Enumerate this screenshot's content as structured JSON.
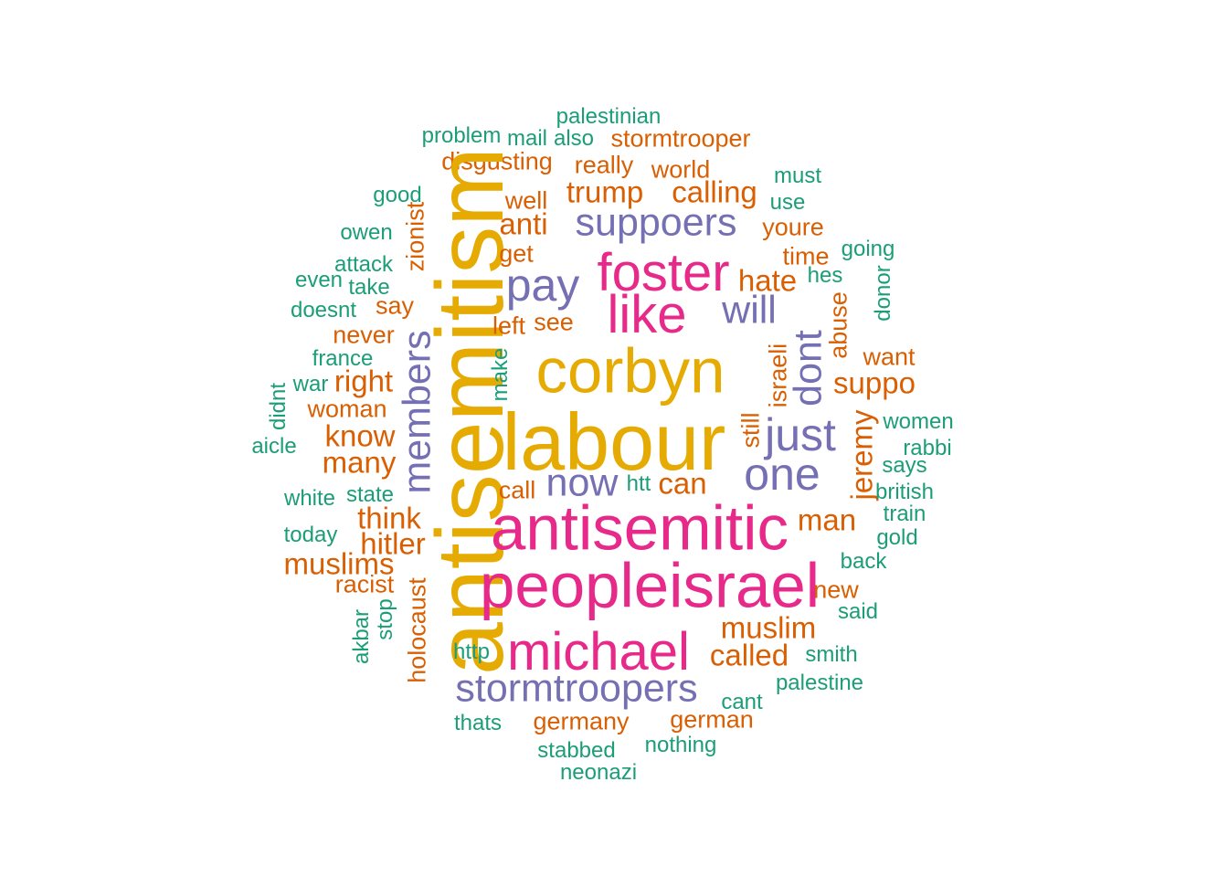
{
  "palette": {
    "green": "#1b9e77",
    "orange": "#d95f02",
    "purple": "#7570b3",
    "pink": "#e7298a",
    "gold": "#e6ab02"
  },
  "words": [
    {
      "text": "palestinian",
      "color": "green",
      "size": 1,
      "vertical": false
    },
    {
      "text": "problem",
      "color": "green",
      "size": 1,
      "vertical": false
    },
    {
      "text": "mail",
      "color": "green",
      "size": 1,
      "vertical": false
    },
    {
      "text": "also",
      "color": "green",
      "size": 1,
      "vertical": false
    },
    {
      "text": "stormtrooper",
      "color": "orange",
      "size": 2,
      "vertical": false
    },
    {
      "text": "disgusting",
      "color": "orange",
      "size": 2,
      "vertical": false
    },
    {
      "text": "really",
      "color": "orange",
      "size": 2,
      "vertical": false
    },
    {
      "text": "world",
      "color": "orange",
      "size": 2,
      "vertical": false
    },
    {
      "text": "must",
      "color": "green",
      "size": 1,
      "vertical": false
    },
    {
      "text": "good",
      "color": "green",
      "size": 1,
      "vertical": false
    },
    {
      "text": "well",
      "color": "orange",
      "size": 2,
      "vertical": false
    },
    {
      "text": "trump",
      "color": "orange",
      "size": 3,
      "vertical": false
    },
    {
      "text": "calling",
      "color": "orange",
      "size": 3,
      "vertical": false
    },
    {
      "text": "use",
      "color": "green",
      "size": 1,
      "vertical": false
    },
    {
      "text": "owen",
      "color": "green",
      "size": 1,
      "vertical": false
    },
    {
      "text": "zionist",
      "color": "orange",
      "size": 2,
      "vertical": true
    },
    {
      "text": "anti",
      "color": "orange",
      "size": 3,
      "vertical": false
    },
    {
      "text": "suppoers",
      "color": "purple",
      "size": 4,
      "vertical": false
    },
    {
      "text": "youre",
      "color": "orange",
      "size": 2,
      "vertical": false
    },
    {
      "text": "antisemitism",
      "color": "gold",
      "size": 9,
      "vertical": true
    },
    {
      "text": "get",
      "color": "orange",
      "size": 2,
      "vertical": false
    },
    {
      "text": "time",
      "color": "orange",
      "size": 2,
      "vertical": false
    },
    {
      "text": "going",
      "color": "green",
      "size": 1,
      "vertical": false
    },
    {
      "text": "attack",
      "color": "green",
      "size": 1,
      "vertical": false
    },
    {
      "text": "foster",
      "color": "pink",
      "size": 6,
      "vertical": false
    },
    {
      "text": "hes",
      "color": "green",
      "size": 1,
      "vertical": false
    },
    {
      "text": "even",
      "color": "green",
      "size": 1,
      "vertical": false
    },
    {
      "text": "take",
      "color": "green",
      "size": 1,
      "vertical": false
    },
    {
      "text": "pay",
      "color": "purple",
      "size": 5,
      "vertical": false
    },
    {
      "text": "hate",
      "color": "orange",
      "size": 3,
      "vertical": false
    },
    {
      "text": "donor",
      "color": "green",
      "size": 1,
      "vertical": true
    },
    {
      "text": "say",
      "color": "orange",
      "size": 2,
      "vertical": false
    },
    {
      "text": "doesnt",
      "color": "green",
      "size": 1,
      "vertical": false
    },
    {
      "text": "abuse",
      "color": "orange",
      "size": 2,
      "vertical": true
    },
    {
      "text": "like",
      "color": "pink",
      "size": 6,
      "vertical": false
    },
    {
      "text": "will",
      "color": "purple",
      "size": 4,
      "vertical": false
    },
    {
      "text": "never",
      "color": "orange",
      "size": 2,
      "vertical": false
    },
    {
      "text": "left",
      "color": "orange",
      "size": 2,
      "vertical": false
    },
    {
      "text": "see",
      "color": "orange",
      "size": 2,
      "vertical": false
    },
    {
      "text": "dont",
      "color": "purple",
      "size": 4,
      "vertical": true
    },
    {
      "text": "france",
      "color": "green",
      "size": 1,
      "vertical": false
    },
    {
      "text": "members",
      "color": "purple",
      "size": 4,
      "vertical": true
    },
    {
      "text": "want",
      "color": "orange",
      "size": 2,
      "vertical": false
    },
    {
      "text": "corbyn",
      "color": "gold",
      "size": 7,
      "vertical": false
    },
    {
      "text": "israeli",
      "color": "orange",
      "size": 2,
      "vertical": true
    },
    {
      "text": "make",
      "color": "green",
      "size": 1,
      "vertical": true
    },
    {
      "text": "war",
      "color": "green",
      "size": 1,
      "vertical": false
    },
    {
      "text": "right",
      "color": "orange",
      "size": 3,
      "vertical": false
    },
    {
      "text": "suppo",
      "color": "orange",
      "size": 3,
      "vertical": false
    },
    {
      "text": "didnt",
      "color": "green",
      "size": 1,
      "vertical": true
    },
    {
      "text": "woman",
      "color": "orange",
      "size": 2,
      "vertical": false
    },
    {
      "text": "women",
      "color": "green",
      "size": 1,
      "vertical": false
    },
    {
      "text": "jeremy",
      "color": "orange",
      "size": 3,
      "vertical": true
    },
    {
      "text": "still",
      "color": "orange",
      "size": 2,
      "vertical": true
    },
    {
      "text": "just",
      "color": "purple",
      "size": 5,
      "vertical": false
    },
    {
      "text": "know",
      "color": "orange",
      "size": 3,
      "vertical": false
    },
    {
      "text": "aicle",
      "color": "green",
      "size": 1,
      "vertical": false
    },
    {
      "text": "labour",
      "color": "gold",
      "size": 10,
      "vertical": false
    },
    {
      "text": "rabbi",
      "color": "green",
      "size": 1,
      "vertical": false
    },
    {
      "text": "many",
      "color": "orange",
      "size": 3,
      "vertical": false
    },
    {
      "text": "says",
      "color": "green",
      "size": 1,
      "vertical": false
    },
    {
      "text": "one",
      "color": "purple",
      "size": 5,
      "vertical": false
    },
    {
      "text": "now",
      "color": "purple",
      "size": 4,
      "vertical": false
    },
    {
      "text": "htt",
      "color": "green",
      "size": 1,
      "vertical": false
    },
    {
      "text": "can",
      "color": "orange",
      "size": 3,
      "vertical": false
    },
    {
      "text": "call",
      "color": "orange",
      "size": 2,
      "vertical": false
    },
    {
      "text": "state",
      "color": "green",
      "size": 1,
      "vertical": false
    },
    {
      "text": "white",
      "color": "green",
      "size": 1,
      "vertical": false
    },
    {
      "text": "british",
      "color": "green",
      "size": 1,
      "vertical": false
    },
    {
      "text": "think",
      "color": "orange",
      "size": 3,
      "vertical": false
    },
    {
      "text": "train",
      "color": "green",
      "size": 1,
      "vertical": false
    },
    {
      "text": "man",
      "color": "orange",
      "size": 3,
      "vertical": false
    },
    {
      "text": "antisemitic",
      "color": "pink",
      "size": 7,
      "vertical": false
    },
    {
      "text": "today",
      "color": "green",
      "size": 1,
      "vertical": false
    },
    {
      "text": "gold",
      "color": "green",
      "size": 1,
      "vertical": false
    },
    {
      "text": "hitler",
      "color": "orange",
      "size": 3,
      "vertical": false
    },
    {
      "text": "back",
      "color": "green",
      "size": 1,
      "vertical": false
    },
    {
      "text": "muslims",
      "color": "orange",
      "size": 3,
      "vertical": false
    },
    {
      "text": "racist",
      "color": "orange",
      "size": 2,
      "vertical": false
    },
    {
      "text": "holocaust",
      "color": "orange",
      "size": 2,
      "vertical": true
    },
    {
      "text": "peopleisrael",
      "color": "pink",
      "size": 7,
      "vertical": false
    },
    {
      "text": "new",
      "color": "orange",
      "size": 2,
      "vertical": false
    },
    {
      "text": "akbar",
      "color": "green",
      "size": 1,
      "vertical": true
    },
    {
      "text": "stop",
      "color": "green",
      "size": 1,
      "vertical": true
    },
    {
      "text": "said",
      "color": "green",
      "size": 1,
      "vertical": false
    },
    {
      "text": "muslim",
      "color": "orange",
      "size": 3,
      "vertical": false
    },
    {
      "text": "michael",
      "color": "pink",
      "size": 6,
      "vertical": false
    },
    {
      "text": "http",
      "color": "green",
      "size": 1,
      "vertical": false
    },
    {
      "text": "called",
      "color": "orange",
      "size": 3,
      "vertical": false
    },
    {
      "text": "smith",
      "color": "green",
      "size": 1,
      "vertical": false
    },
    {
      "text": "stormtroopers",
      "color": "purple",
      "size": 4,
      "vertical": false
    },
    {
      "text": "palestine",
      "color": "green",
      "size": 1,
      "vertical": false
    },
    {
      "text": "cant",
      "color": "green",
      "size": 1,
      "vertical": false
    },
    {
      "text": "thats",
      "color": "green",
      "size": 1,
      "vertical": false
    },
    {
      "text": "germany",
      "color": "orange",
      "size": 2,
      "vertical": false
    },
    {
      "text": "german",
      "color": "orange",
      "size": 2,
      "vertical": false
    },
    {
      "text": "stabbed",
      "color": "green",
      "size": 1,
      "vertical": false
    },
    {
      "text": "nothing",
      "color": "green",
      "size": 1,
      "vertical": false
    },
    {
      "text": "neonazi",
      "color": "green",
      "size": 1,
      "vertical": false
    }
  ]
}
